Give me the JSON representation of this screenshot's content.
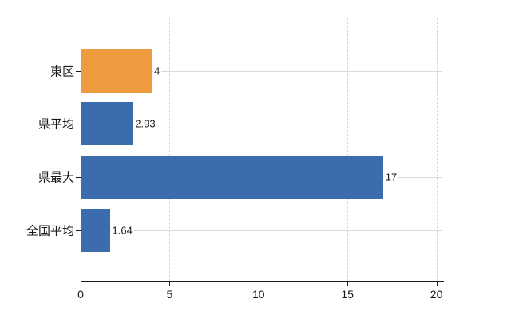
{
  "chart_data": {
    "type": "bar",
    "orientation": "horizontal",
    "title": "",
    "xlabel": "",
    "ylabel": "",
    "categories": [
      "東区",
      "県平均",
      "県最大",
      "全国平均"
    ],
    "values": [
      4,
      2.93,
      17,
      1.64
    ],
    "value_labels": [
      "4",
      "2.93",
      "17",
      "1.64"
    ],
    "bar_colors": [
      "#EE9A3F",
      "#3B6CAE",
      "#3B6CAE",
      "#3B6CAE"
    ],
    "highlighted_category": "東区",
    "x_ticks": [
      0,
      5,
      10,
      15,
      20
    ],
    "x_tick_labels": [
      "0",
      "5",
      "10",
      "15",
      "20"
    ],
    "xlim": [
      0,
      20.3
    ],
    "grid": "dashed light-gray vertical at ticks, light-gray horizontal at category centers",
    "legend": "none"
  },
  "colors": {
    "bar_blue": "#3B6CAE",
    "bar_orange": "#EE9A3F",
    "grid": "#d2d8d2",
    "plot_border": "#c9cfc9",
    "axis": "#1a1a1a",
    "text": "#1a1a1a",
    "background": "#ffffff"
  }
}
